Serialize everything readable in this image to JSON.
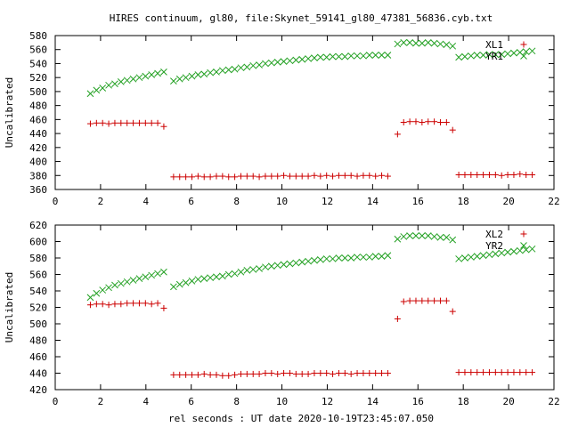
{
  "chart_data": {
    "title": "HIRES continuum, gl80, file:Skynet_59141_gl80_47381_56836.cyb.txt",
    "xlabel": "rel seconds : UT date 2020-10-19T23:45:07.050",
    "colors": {
      "series_a": "#cc0000",
      "series_b": "#22a022"
    },
    "x_ticks": [
      0,
      2,
      4,
      6,
      8,
      10,
      12,
      14,
      16,
      18,
      20,
      22
    ],
    "panels": [
      {
        "type": "scatter",
        "ylabel": "Uncalibrated",
        "xlim": [
          0,
          22
        ],
        "ylim": [
          360,
          580
        ],
        "y_ticks": [
          360,
          380,
          400,
          420,
          440,
          460,
          480,
          500,
          520,
          540,
          560,
          580
        ],
        "legend": "top-right",
        "series": [
          {
            "name": "XL1",
            "marker": "plus",
            "color": "#cc0000",
            "x": [
              1.55,
              1.82,
              2.09,
              2.36,
              2.63,
              2.9,
              3.17,
              3.44,
              3.71,
              3.98,
              4.25,
              4.52,
              4.79,
              5.22,
              5.49,
              5.76,
              6.03,
              6.3,
              6.57,
              6.84,
              7.11,
              7.38,
              7.65,
              7.92,
              8.19,
              8.46,
              8.73,
              9.0,
              9.27,
              9.54,
              9.81,
              10.08,
              10.35,
              10.62,
              10.89,
              11.16,
              11.43,
              11.7,
              11.97,
              12.24,
              12.51,
              12.78,
              13.05,
              13.32,
              13.59,
              13.86,
              14.13,
              14.4,
              14.67,
              15.1,
              15.37,
              15.64,
              15.91,
              16.18,
              16.45,
              16.72,
              16.99,
              17.26,
              17.53,
              17.8,
              18.07,
              18.34,
              18.61,
              18.88,
              19.15,
              19.42,
              19.69,
              19.96,
              20.23,
              20.5,
              20.77,
              21.04
            ],
            "y": [
              454,
              455,
              455,
              454,
              455,
              455,
              455,
              455,
              455,
              455,
              455,
              455,
              450,
              378,
              378,
              378,
              378,
              379,
              378,
              378,
              379,
              379,
              378,
              378,
              379,
              379,
              379,
              378,
              379,
              379,
              379,
              380,
              379,
              379,
              379,
              379,
              380,
              379,
              380,
              379,
              380,
              380,
              380,
              379,
              380,
              380,
              379,
              380,
              379,
              439,
              456,
              457,
              457,
              456,
              457,
              457,
              456,
              456,
              445,
              381,
              381,
              381,
              381,
              381,
              381,
              381,
              380,
              381,
              381,
              382,
              381,
              381
            ]
          },
          {
            "name": "YR1",
            "marker": "cross",
            "color": "#22a022",
            "x": [
              1.55,
              1.82,
              2.09,
              2.36,
              2.63,
              2.9,
              3.17,
              3.44,
              3.71,
              3.98,
              4.25,
              4.52,
              4.79,
              5.22,
              5.49,
              5.76,
              6.03,
              6.3,
              6.57,
              6.84,
              7.11,
              7.38,
              7.65,
              7.92,
              8.19,
              8.46,
              8.73,
              9.0,
              9.27,
              9.54,
              9.81,
              10.08,
              10.35,
              10.62,
              10.89,
              11.16,
              11.43,
              11.7,
              11.97,
              12.24,
              12.51,
              12.78,
              13.05,
              13.32,
              13.59,
              13.86,
              14.13,
              14.4,
              14.67,
              15.1,
              15.37,
              15.64,
              15.91,
              16.18,
              16.45,
              16.72,
              16.99,
              17.26,
              17.53,
              17.8,
              18.07,
              18.34,
              18.61,
              18.88,
              19.15,
              19.42,
              19.69,
              19.96,
              20.23,
              20.5,
              20.77,
              21.04
            ],
            "y": [
              497,
              502,
              505,
              509,
              511,
              514,
              516,
              518,
              520,
              522,
              524,
              526,
              528,
              515,
              518,
              520,
              522,
              524,
              525,
              527,
              528,
              530,
              531,
              532,
              534,
              535,
              537,
              538,
              540,
              541,
              542,
              543,
              544,
              545,
              546,
              547,
              548,
              549,
              549,
              550,
              550,
              550,
              551,
              551,
              551,
              552,
              552,
              552,
              552,
              568,
              570,
              570,
              569,
              569,
              570,
              569,
              568,
              567,
              565,
              549,
              550,
              551,
              552,
              552,
              553,
              553,
              553,
              554,
              555,
              556,
              557,
              558
            ]
          }
        ]
      },
      {
        "type": "scatter",
        "ylabel": "Uncalibrated",
        "xlim": [
          0,
          22
        ],
        "ylim": [
          420,
          620
        ],
        "y_ticks": [
          420,
          440,
          460,
          480,
          500,
          520,
          540,
          560,
          580,
          600,
          620
        ],
        "legend": "top-right",
        "series": [
          {
            "name": "XL2",
            "marker": "plus",
            "color": "#cc0000",
            "x": [
              1.55,
              1.82,
              2.09,
              2.36,
              2.63,
              2.9,
              3.17,
              3.44,
              3.71,
              3.98,
              4.25,
              4.52,
              4.79,
              5.22,
              5.49,
              5.76,
              6.03,
              6.3,
              6.57,
              6.84,
              7.11,
              7.38,
              7.65,
              7.92,
              8.19,
              8.46,
              8.73,
              9.0,
              9.27,
              9.54,
              9.81,
              10.08,
              10.35,
              10.62,
              10.89,
              11.16,
              11.43,
              11.7,
              11.97,
              12.24,
              12.51,
              12.78,
              13.05,
              13.32,
              13.59,
              13.86,
              14.13,
              14.4,
              14.67,
              15.1,
              15.37,
              15.64,
              15.91,
              16.18,
              16.45,
              16.72,
              16.99,
              17.26,
              17.53,
              17.8,
              18.07,
              18.34,
              18.61,
              18.88,
              19.15,
              19.42,
              19.69,
              19.96,
              20.23,
              20.5,
              20.77,
              21.04
            ],
            "y": [
              523,
              524,
              524,
              523,
              524,
              524,
              525,
              525,
              525,
              525,
              524,
              525,
              519,
              438,
              438,
              438,
              438,
              438,
              439,
              438,
              438,
              437,
              437,
              438,
              439,
              439,
              439,
              439,
              440,
              440,
              439,
              440,
              440,
              439,
              439,
              439,
              440,
              440,
              440,
              439,
              440,
              440,
              439,
              440,
              440,
              440,
              440,
              440,
              440,
              506,
              527,
              528,
              528,
              528,
              528,
              528,
              528,
              528,
              515,
              441,
              441,
              441,
              441,
              441,
              441,
              441,
              441,
              441,
              441,
              441,
              441,
              441
            ]
          },
          {
            "name": "YR2",
            "marker": "cross",
            "color": "#22a022",
            "x": [
              1.55,
              1.82,
              2.09,
              2.36,
              2.63,
              2.9,
              3.17,
              3.44,
              3.71,
              3.98,
              4.25,
              4.52,
              4.79,
              5.22,
              5.49,
              5.76,
              6.03,
              6.3,
              6.57,
              6.84,
              7.11,
              7.38,
              7.65,
              7.92,
              8.19,
              8.46,
              8.73,
              9.0,
              9.27,
              9.54,
              9.81,
              10.08,
              10.35,
              10.62,
              10.89,
              11.16,
              11.43,
              11.7,
              11.97,
              12.24,
              12.51,
              12.78,
              13.05,
              13.32,
              13.59,
              13.86,
              14.13,
              14.4,
              14.67,
              15.1,
              15.37,
              15.64,
              15.91,
              16.18,
              16.45,
              16.72,
              16.99,
              17.26,
              17.53,
              17.8,
              18.07,
              18.34,
              18.61,
              18.88,
              19.15,
              19.42,
              19.69,
              19.96,
              20.23,
              20.5,
              20.77,
              21.04
            ],
            "y": [
              532,
              537,
              541,
              544,
              547,
              549,
              551,
              553,
              555,
              557,
              559,
              561,
              563,
              545,
              548,
              550,
              552,
              554,
              555,
              556,
              557,
              558,
              560,
              561,
              563,
              565,
              566,
              567,
              569,
              570,
              571,
              572,
              573,
              574,
              575,
              576,
              577,
              578,
              579,
              579,
              580,
              580,
              580,
              581,
              581,
              581,
              582,
              582,
              583,
              603,
              606,
              607,
              607,
              607,
              607,
              606,
              605,
              605,
              602,
              579,
              580,
              581,
              582,
              583,
              584,
              585,
              586,
              587,
              588,
              589,
              590,
              591
            ]
          }
        ]
      }
    ]
  }
}
